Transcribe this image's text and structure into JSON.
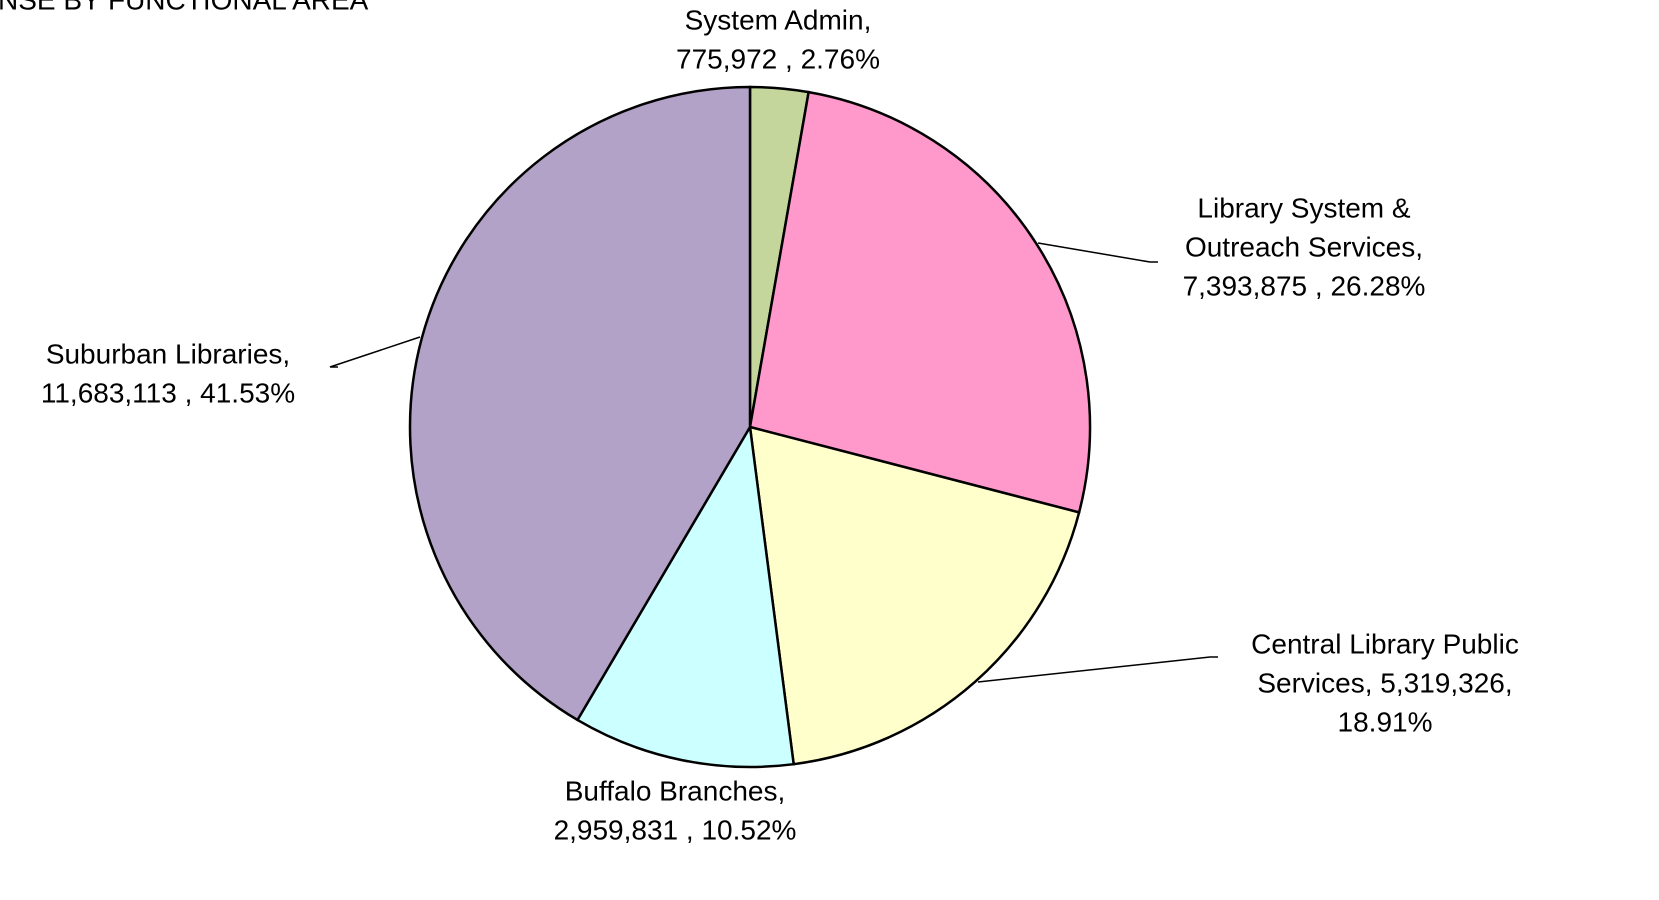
{
  "chart_data": {
    "type": "pie",
    "title": "NSE BY FUNCTIONAL  AREA",
    "categories": [
      "System Admin",
      "Library System & Outreach Services",
      "Central Library Public Services",
      "Buffalo Branches",
      "Suburban Libraries"
    ],
    "values": [
      775972,
      7393875,
      5319326,
      2959831,
      11683113
    ],
    "colors": [
      "#c4d69b",
      "#ff99cc",
      "#ffffcc",
      "#ccffff",
      "#b3a2c7"
    ],
    "data_labels": [
      [
        "System Admin,",
        "775,972 , 2.76%"
      ],
      [
        "Library System &",
        "Outreach Services,",
        "7,393,875 , 26.28%"
      ],
      [
        "Central Library Public",
        "Services, 5,319,326,",
        "18.91%"
      ],
      [
        "Buffalo Branches,",
        "2,959,831 , 10.52%"
      ],
      [
        "Suburban Libraries,",
        "11,683,113 , 41.53%"
      ]
    ]
  }
}
